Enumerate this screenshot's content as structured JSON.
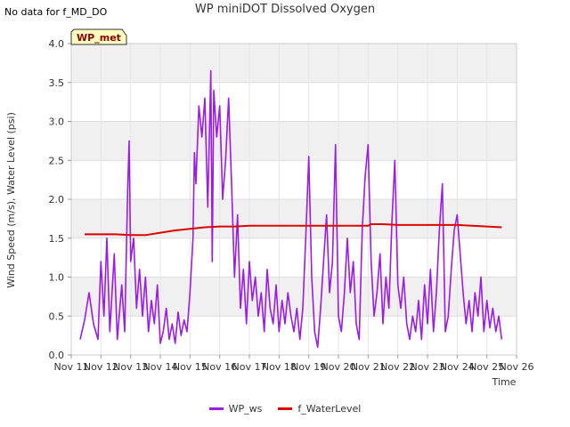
{
  "header": {
    "note": "No data for f_MD_DO",
    "title": "WP miniDOT Dissolved Oxygen"
  },
  "badge": "WP_met",
  "chart_data": {
    "type": "line",
    "title": "WP miniDOT Dissolved Oxygen",
    "xlabel": "Time",
    "ylabel": "Wind Speed (m/s), Water Level (psi)",
    "xlim": [
      11,
      26
    ],
    "ylim": [
      0.0,
      4.0
    ],
    "x_ticks": [
      "Nov 11",
      "Nov 12",
      "Nov 13",
      "Nov 14",
      "Nov 15",
      "Nov 16",
      "Nov 17",
      "Nov 18",
      "Nov 19",
      "Nov 20",
      "Nov 21",
      "Nov 22",
      "Nov 23",
      "Nov 24",
      "Nov 25",
      "Nov 26"
    ],
    "y_ticks": [
      "0.0",
      "0.5",
      "1.0",
      "1.5",
      "2.0",
      "2.5",
      "3.0",
      "3.5",
      "4.0"
    ],
    "grid": true,
    "legend": "bottom-center",
    "series": [
      {
        "name": "WP_ws",
        "color": "#9B1BE8",
        "points": [
          [
            11.3,
            0.2
          ],
          [
            11.45,
            0.45
          ],
          [
            11.6,
            0.8
          ],
          [
            11.75,
            0.4
          ],
          [
            11.9,
            0.2
          ],
          [
            12.0,
            1.2
          ],
          [
            12.1,
            0.5
          ],
          [
            12.2,
            1.5
          ],
          [
            12.3,
            0.3
          ],
          [
            12.45,
            1.3
          ],
          [
            12.55,
            0.2
          ],
          [
            12.7,
            0.9
          ],
          [
            12.8,
            0.3
          ],
          [
            12.9,
            2.1
          ],
          [
            12.95,
            2.75
          ],
          [
            13.0,
            1.2
          ],
          [
            13.1,
            1.5
          ],
          [
            13.2,
            0.6
          ],
          [
            13.3,
            1.1
          ],
          [
            13.4,
            0.5
          ],
          [
            13.5,
            1.0
          ],
          [
            13.6,
            0.3
          ],
          [
            13.7,
            0.7
          ],
          [
            13.8,
            0.4
          ],
          [
            13.9,
            0.9
          ],
          [
            14.0,
            0.15
          ],
          [
            14.1,
            0.3
          ],
          [
            14.2,
            0.6
          ],
          [
            14.3,
            0.2
          ],
          [
            14.4,
            0.4
          ],
          [
            14.5,
            0.15
          ],
          [
            14.6,
            0.55
          ],
          [
            14.7,
            0.25
          ],
          [
            14.8,
            0.45
          ],
          [
            14.9,
            0.3
          ],
          [
            15.0,
            0.8
          ],
          [
            15.1,
            1.5
          ],
          [
            15.15,
            2.6
          ],
          [
            15.2,
            2.2
          ],
          [
            15.3,
            3.2
          ],
          [
            15.4,
            2.8
          ],
          [
            15.5,
            3.3
          ],
          [
            15.6,
            1.9
          ],
          [
            15.7,
            3.65
          ],
          [
            15.75,
            1.2
          ],
          [
            15.8,
            3.4
          ],
          [
            15.9,
            2.8
          ],
          [
            16.0,
            3.2
          ],
          [
            16.1,
            2.0
          ],
          [
            16.2,
            2.5
          ],
          [
            16.3,
            3.3
          ],
          [
            16.4,
            2.2
          ],
          [
            16.5,
            1.0
          ],
          [
            16.6,
            1.8
          ],
          [
            16.7,
            0.6
          ],
          [
            16.8,
            1.1
          ],
          [
            16.9,
            0.4
          ],
          [
            17.0,
            1.2
          ],
          [
            17.1,
            0.7
          ],
          [
            17.2,
            1.0
          ],
          [
            17.3,
            0.5
          ],
          [
            17.4,
            0.8
          ],
          [
            17.5,
            0.3
          ],
          [
            17.6,
            1.1
          ],
          [
            17.7,
            0.6
          ],
          [
            17.8,
            0.4
          ],
          [
            17.9,
            0.9
          ],
          [
            18.0,
            0.3
          ],
          [
            18.1,
            0.7
          ],
          [
            18.2,
            0.4
          ],
          [
            18.3,
            0.8
          ],
          [
            18.4,
            0.5
          ],
          [
            18.5,
            0.3
          ],
          [
            18.6,
            0.6
          ],
          [
            18.7,
            0.2
          ],
          [
            18.8,
            0.6
          ],
          [
            18.9,
            1.5
          ],
          [
            19.0,
            2.55
          ],
          [
            19.1,
            1.0
          ],
          [
            19.2,
            0.3
          ],
          [
            19.3,
            0.1
          ],
          [
            19.4,
            0.6
          ],
          [
            19.5,
            1.2
          ],
          [
            19.6,
            1.8
          ],
          [
            19.7,
            0.8
          ],
          [
            19.8,
            1.2
          ],
          [
            19.9,
            2.7
          ],
          [
            20.0,
            0.5
          ],
          [
            20.1,
            0.3
          ],
          [
            20.2,
            0.8
          ],
          [
            20.3,
            1.5
          ],
          [
            20.4,
            0.8
          ],
          [
            20.5,
            1.2
          ],
          [
            20.6,
            0.4
          ],
          [
            20.7,
            0.2
          ],
          [
            20.8,
            1.6
          ],
          [
            20.9,
            2.3
          ],
          [
            21.0,
            2.7
          ],
          [
            21.1,
            1.2
          ],
          [
            21.2,
            0.5
          ],
          [
            21.3,
            0.8
          ],
          [
            21.4,
            1.3
          ],
          [
            21.5,
            0.4
          ],
          [
            21.6,
            1.0
          ],
          [
            21.7,
            0.6
          ],
          [
            21.8,
            1.7
          ],
          [
            21.9,
            2.5
          ],
          [
            22.0,
            0.9
          ],
          [
            22.1,
            0.6
          ],
          [
            22.2,
            1.0
          ],
          [
            22.3,
            0.4
          ],
          [
            22.4,
            0.2
          ],
          [
            22.5,
            0.5
          ],
          [
            22.6,
            0.3
          ],
          [
            22.7,
            0.7
          ],
          [
            22.8,
            0.2
          ],
          [
            22.9,
            0.9
          ],
          [
            23.0,
            0.4
          ],
          [
            23.1,
            1.1
          ],
          [
            23.2,
            0.3
          ],
          [
            23.3,
            0.8
          ],
          [
            23.4,
            1.6
          ],
          [
            23.5,
            2.2
          ],
          [
            23.6,
            0.3
          ],
          [
            23.7,
            0.5
          ],
          [
            23.8,
            1.1
          ],
          [
            23.9,
            1.6
          ],
          [
            24.0,
            1.8
          ],
          [
            24.1,
            1.3
          ],
          [
            24.2,
            0.8
          ],
          [
            24.3,
            0.4
          ],
          [
            24.4,
            0.7
          ],
          [
            24.5,
            0.3
          ],
          [
            24.6,
            0.8
          ],
          [
            24.7,
            0.5
          ],
          [
            24.8,
            1.0
          ],
          [
            24.9,
            0.3
          ],
          [
            25.0,
            0.7
          ],
          [
            25.1,
            0.35
          ],
          [
            25.2,
            0.6
          ],
          [
            25.3,
            0.3
          ],
          [
            25.4,
            0.5
          ],
          [
            25.5,
            0.2
          ]
        ]
      },
      {
        "name": "f_WaterLevel",
        "color": "#DD0000",
        "points": [
          [
            11.45,
            1.55
          ],
          [
            12.0,
            1.55
          ],
          [
            12.5,
            1.55
          ],
          [
            13.0,
            1.54
          ],
          [
            13.5,
            1.54
          ],
          [
            14.0,
            1.57
          ],
          [
            14.5,
            1.6
          ],
          [
            15.0,
            1.62
          ],
          [
            15.5,
            1.64
          ],
          [
            16.0,
            1.65
          ],
          [
            16.5,
            1.65
          ],
          [
            17.0,
            1.66
          ],
          [
            17.5,
            1.66
          ],
          [
            18.0,
            1.66
          ],
          [
            18.5,
            1.66
          ],
          [
            19.0,
            1.66
          ],
          [
            19.5,
            1.66
          ],
          [
            20.0,
            1.66
          ],
          [
            20.5,
            1.66
          ],
          [
            21.0,
            1.66
          ],
          [
            21.1,
            1.68
          ],
          [
            21.5,
            1.68
          ],
          [
            22.0,
            1.67
          ],
          [
            22.5,
            1.67
          ],
          [
            23.0,
            1.67
          ],
          [
            23.5,
            1.67
          ],
          [
            24.0,
            1.67
          ],
          [
            24.5,
            1.66
          ],
          [
            25.0,
            1.65
          ],
          [
            25.5,
            1.64
          ]
        ]
      }
    ]
  }
}
